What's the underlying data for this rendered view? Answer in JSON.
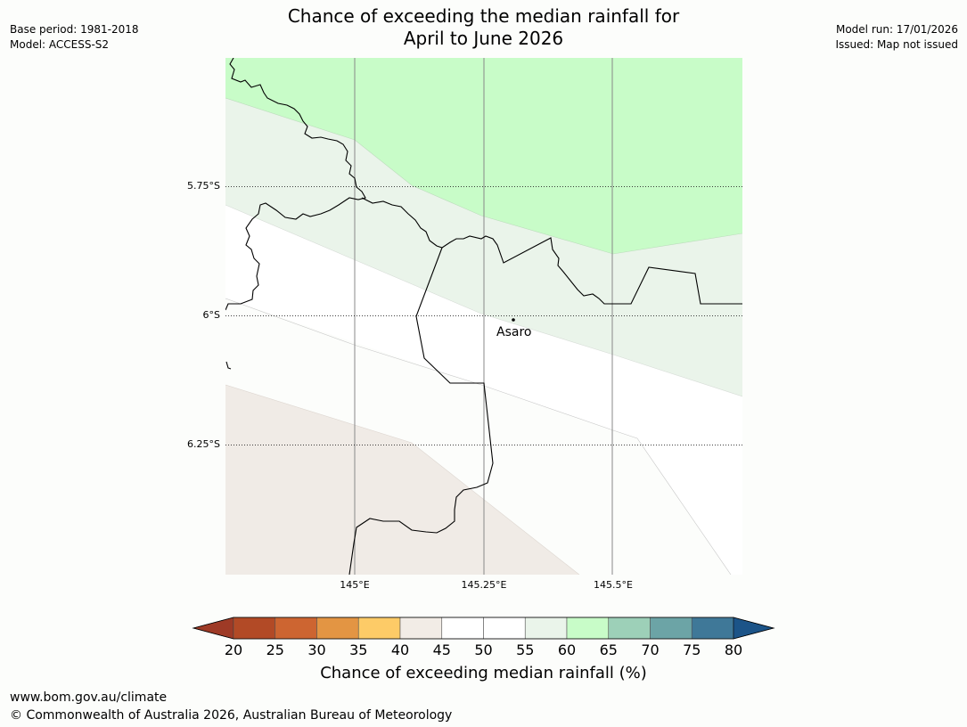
{
  "header": {
    "base_period": "Base period: 1981-2018",
    "model": "Model: ACCESS-S2",
    "title_line1": "Chance of exceeding the median rainfall for",
    "title_line2": "April to June 2026",
    "model_run": "Model run: 17/01/2026",
    "issued": "Issued: Map not issued"
  },
  "map": {
    "lat_labels": [
      "5.75°S",
      "6°S",
      "6.25°S"
    ],
    "lon_labels": [
      "145°E",
      "145.25°E",
      "145.5°E"
    ],
    "place": "Asaro",
    "colors": {
      "band_65_70": "#c8fcc8",
      "band_55_60": "#eaf4ea",
      "band_50_55": "#ffffff",
      "band_40_45": "#f0ebe6",
      "land_background": "#fcfdfb",
      "gridline": "#888888"
    }
  },
  "colorbar": {
    "label": "Chance of exceeding median rainfall (%)",
    "ticks": [
      "20",
      "25",
      "30",
      "35",
      "40",
      "45",
      "50",
      "55",
      "60",
      "65",
      "70",
      "75",
      "80"
    ],
    "colors": [
      "#9e3a26",
      "#b24a26",
      "#cd6531",
      "#e39543",
      "#fdcb67",
      "#f2ece6",
      "#ffffff",
      "#ffffff",
      "#eaf4ea",
      "#c8fcc8",
      "#9dd0b8",
      "#6ca4a6",
      "#3f7898",
      "#1c5488"
    ]
  },
  "footer": {
    "url": "www.bom.gov.au/climate",
    "copyright": "© Commonwealth of Australia 2026, Australian Bureau of Meteorology"
  }
}
